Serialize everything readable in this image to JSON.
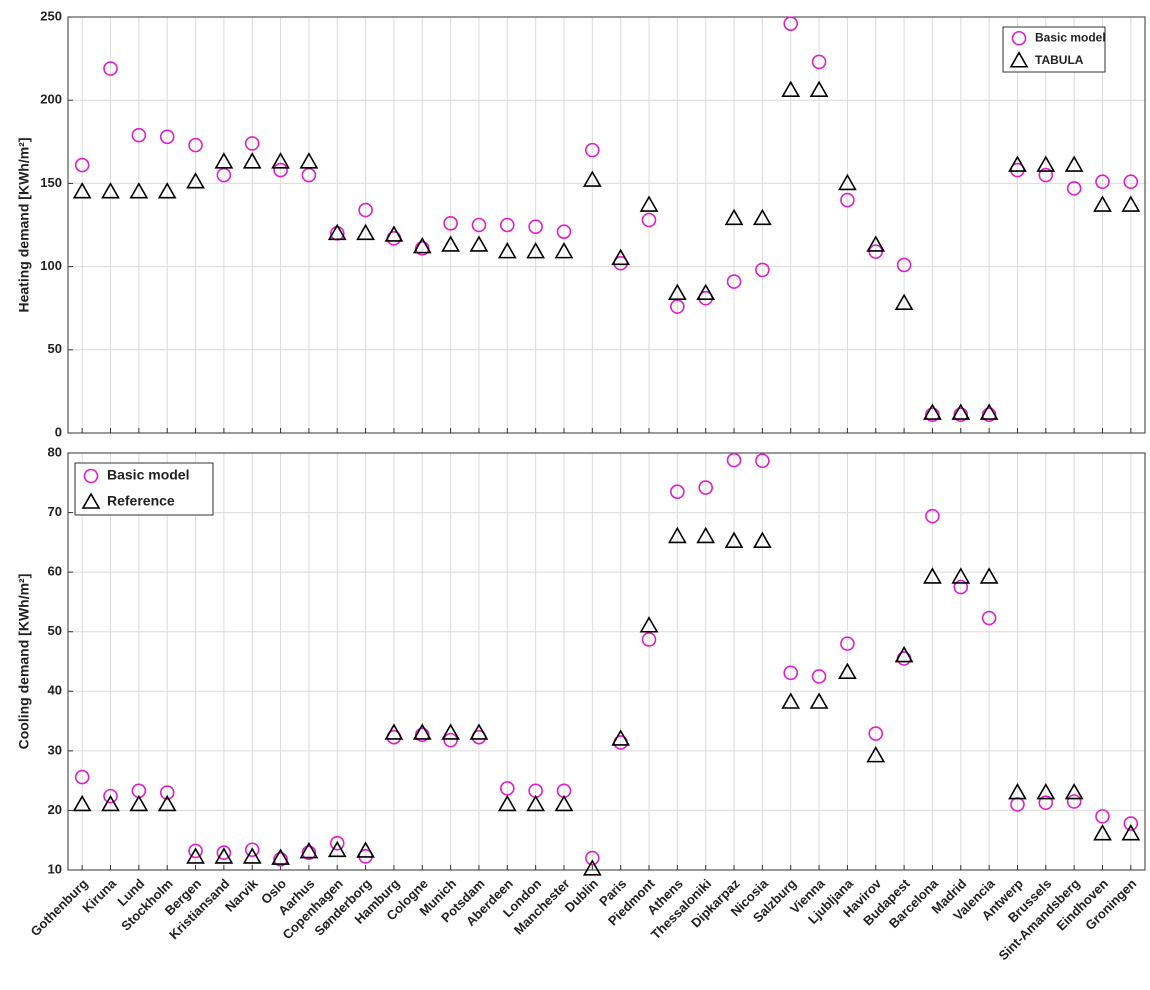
{
  "chart_data": [
    {
      "type": "scatter",
      "ylabel": "Heating demand [KWh/m²]",
      "ylim": [
        0,
        250
      ],
      "yticks": [
        0,
        50,
        100,
        150,
        200,
        250
      ],
      "grid": true,
      "legend": "upper right",
      "series": [
        {
          "name": "Basic model",
          "color": "#e01ec8",
          "marker": "circle",
          "values": [
            161,
            219,
            179,
            178,
            173,
            155,
            174,
            158,
            155,
            120,
            134,
            117,
            111,
            126,
            125,
            125,
            124,
            121,
            170,
            102,
            128,
            76,
            81,
            91,
            98,
            246,
            223,
            140,
            109,
            101,
            11,
            11,
            11,
            158,
            155,
            147,
            151,
            151
          ]
        },
        {
          "name": "TABULA",
          "color": "#000000",
          "marker": "triangle",
          "values": [
            145,
            145,
            145,
            145,
            151,
            163,
            163,
            163,
            163,
            120,
            120,
            119,
            112,
            113,
            113,
            109,
            109,
            109,
            152,
            105,
            137,
            84,
            84,
            129,
            129,
            206,
            206,
            150,
            113,
            78,
            12,
            12,
            12,
            161,
            161,
            161,
            137,
            137
          ]
        }
      ]
    },
    {
      "type": "scatter",
      "ylabel": "Cooling demand [KWh/m²]",
      "ylim": [
        10,
        80
      ],
      "yticks": [
        10,
        20,
        30,
        40,
        50,
        60,
        70,
        80
      ],
      "grid": true,
      "legend": "upper left",
      "categories": [
        "Gothenburg",
        "Kiruna",
        "Lund",
        "Stockholm",
        "Bergen",
        "Kristiansand",
        "Narvik",
        "Oslo",
        "Aarhus",
        "Copenhagen",
        "Sønderborg",
        "Hamburg",
        "Cologne",
        "Munich",
        "Potsdam",
        "Aberdeen",
        "London",
        "Manchester",
        "Dublin",
        "Paris",
        "Piedmont",
        "Athens",
        "Thessaloniki",
        "Dipkarpaz",
        "Nicosia",
        "Salzburg",
        "Vienna",
        "Ljubljana",
        "Havirov",
        "Budapest",
        "Barcelona",
        "Madrid",
        "Valencia",
        "Antwerp",
        "Brussels",
        "Sint-Amandsberg",
        "Eindhoven",
        "Groningen"
      ],
      "series": [
        {
          "name": "Basic model",
          "color": "#e01ec8",
          "marker": "circle",
          "values": [
            25.6,
            22.4,
            23.3,
            23,
            13.2,
            12.9,
            13.4,
            11.8,
            12.9,
            14.5,
            12.3,
            32.3,
            32.7,
            31.8,
            32.3,
            23.7,
            23.3,
            23.3,
            12,
            31.4,
            48.7,
            73.5,
            74.2,
            78.8,
            78.7,
            43.1,
            42.5,
            48,
            32.9,
            45.5,
            69.4,
            57.5,
            52.3,
            21,
            21.3,
            21.5,
            19,
            17.8
          ]
        },
        {
          "name": "Reference",
          "color": "#000000",
          "marker": "triangle",
          "values": [
            21,
            21,
            21,
            21,
            12.2,
            12.2,
            12.2,
            12,
            13.1,
            13.3,
            13.2,
            33,
            33,
            33,
            33,
            21,
            21,
            21,
            10.2,
            32,
            51,
            66,
            66,
            65.2,
            65.2,
            38.2,
            38.2,
            43.2,
            29.2,
            46,
            59.2,
            59.2,
            59.2,
            23,
            23,
            23,
            16.1,
            16.1
          ]
        }
      ]
    }
  ]
}
